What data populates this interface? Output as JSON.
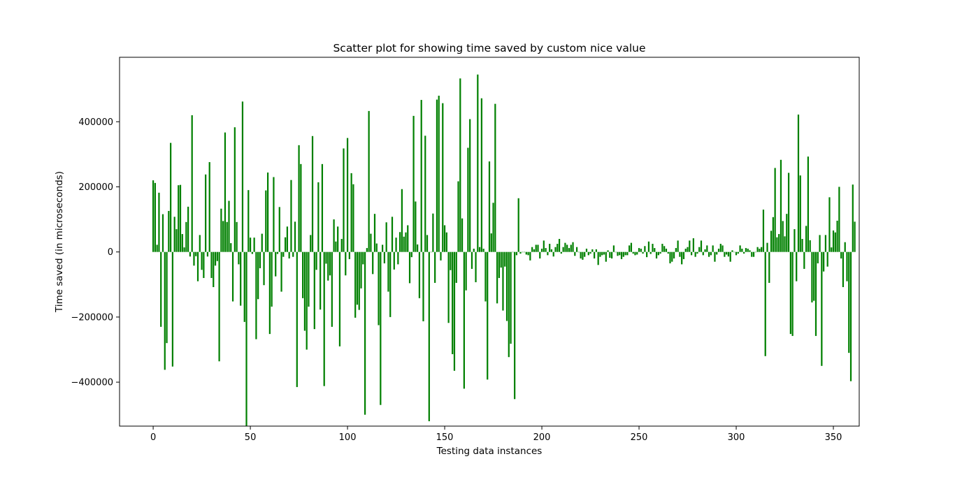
{
  "chart_data": {
    "type": "bar",
    "title": "Scatter plot for showing time saved by custom nice value",
    "xlabel": "Testing data instances",
    "ylabel": "Time saved (in microseconds)",
    "xlim": [
      -17.3,
      363.3
    ],
    "ylim": [
      -535000,
      598000
    ],
    "xticks": [
      0,
      50,
      100,
      150,
      200,
      250,
      300,
      350
    ],
    "yticks": [
      -400000,
      -200000,
      0,
      200000,
      400000
    ],
    "xtick_labels": [
      "0",
      "50",
      "100",
      "150",
      "200",
      "250",
      "300",
      "350"
    ],
    "ytick_labels": [
      "−400000",
      "−200000",
      "0",
      "200000",
      "400000"
    ],
    "grid": false,
    "legend": "none",
    "bar_color": "#008000",
    "x_start": 0,
    "values": [
      220000,
      212000,
      22000,
      182000,
      -230000,
      116000,
      -362000,
      -280000,
      126000,
      335000,
      -352000,
      108000,
      70000,
      205000,
      206000,
      55000,
      14000,
      92000,
      139000,
      -14000,
      420000,
      -42000,
      -13000,
      -90000,
      52000,
      -55000,
      -80000,
      238000,
      -14000,
      276000,
      -80000,
      -108000,
      -42000,
      -28000,
      -336000,
      133000,
      95000,
      367000,
      92000,
      157000,
      27000,
      -152000,
      383000,
      92000,
      -38000,
      -165000,
      462000,
      -215000,
      -535000,
      190000,
      44000,
      -6000,
      44000,
      -268000,
      -145000,
      -50000,
      56000,
      -102000,
      189000,
      244000,
      -252000,
      -168000,
      230000,
      -75000,
      -6000,
      138000,
      -122000,
      -15000,
      45000,
      78000,
      -20000,
      221000,
      -15000,
      93000,
      -415000,
      328000,
      270000,
      -142000,
      -242000,
      -300000,
      -168000,
      52000,
      356000,
      -237000,
      -55000,
      214000,
      -177000,
      270000,
      -412000,
      -36000,
      -88000,
      -72000,
      -230000,
      100000,
      32000,
      78000,
      -290000,
      40000,
      318000,
      -72000,
      350000,
      -22000,
      242000,
      208000,
      -202000,
      -162000,
      -178000,
      -112000,
      -38000,
      -500000,
      12000,
      433000,
      56000,
      -68000,
      117000,
      26000,
      -225000,
      -470000,
      22000,
      -35000,
      91000,
      -122000,
      -200000,
      108000,
      -54000,
      44000,
      -38000,
      61000,
      193000,
      47000,
      60000,
      82000,
      -96000,
      -16000,
      418000,
      155000,
      23000,
      -142000,
      467000,
      -213000,
      357000,
      52000,
      -520000,
      0,
      118000,
      -95000,
      468000,
      480000,
      -26000,
      457000,
      82000,
      60000,
      -218000,
      -56000,
      -314000,
      -365000,
      -95000,
      217000,
      533000,
      103000,
      -420000,
      -118000,
      320000,
      408000,
      -52000,
      10000,
      -93000,
      545000,
      15000,
      472000,
      10000,
      -152000,
      -392000,
      278000,
      57000,
      151000,
      455000,
      -158000,
      -80000,
      -48000,
      -180000,
      -45000,
      -212000,
      -323000,
      -282000,
      0,
      -452000,
      -10000,
      165000,
      -5000,
      0,
      0,
      -8000,
      -10000,
      -26000,
      15000,
      8000,
      22000,
      22000,
      -20000,
      10000,
      35000,
      12000,
      -10000,
      25000,
      8000,
      -14000,
      15000,
      25000,
      40000,
      -5000,
      15000,
      28000,
      22000,
      12000,
      22000,
      30000,
      -12000,
      15000,
      0,
      -20000,
      -24000,
      -15000,
      10000,
      -10000,
      -5000,
      8000,
      -20000,
      8000,
      -40000,
      -15000,
      -10000,
      -8000,
      -30000,
      5000,
      -18000,
      -20000,
      20000,
      0,
      -12000,
      -10000,
      -22000,
      -15000,
      -10000,
      -10000,
      20000,
      28000,
      -5000,
      -10000,
      -8000,
      12000,
      10000,
      -5000,
      18000,
      -16000,
      32000,
      -6000,
      25000,
      12000,
      -20000,
      -10000,
      -5000,
      25000,
      18000,
      10000,
      -5000,
      -35000,
      -30000,
      -20000,
      12000,
      35000,
      -15000,
      -38000,
      -22000,
      10000,
      15000,
      35000,
      -10000,
      42000,
      -15000,
      -5000,
      15000,
      35000,
      -10000,
      8000,
      20000,
      -15000,
      -10000,
      20000,
      -30000,
      -8000,
      10000,
      25000,
      20000,
      -15000,
      -8000,
      -14000,
      -30000,
      5000,
      0,
      -10000,
      -5000,
      20000,
      10000,
      -5000,
      12000,
      10000,
      5000,
      -15000,
      -15000,
      0,
      15000,
      10000,
      15000,
      130000,
      -320000,
      28000,
      -95000,
      65000,
      107000,
      258000,
      45000,
      55000,
      283000,
      95000,
      48000,
      117000,
      243000,
      -252000,
      -258000,
      70000,
      -90000,
      422000,
      235000,
      40000,
      -52000,
      80000,
      293000,
      36000,
      -155000,
      -150000,
      -258000,
      -35000,
      52000,
      -350000,
      -60000,
      52000,
      -45000,
      168000,
      14000,
      66000,
      60000,
      96000,
      200000,
      -20000,
      -108000,
      30000,
      -90000,
      -310000,
      -397000,
      207000,
      93000
    ]
  }
}
